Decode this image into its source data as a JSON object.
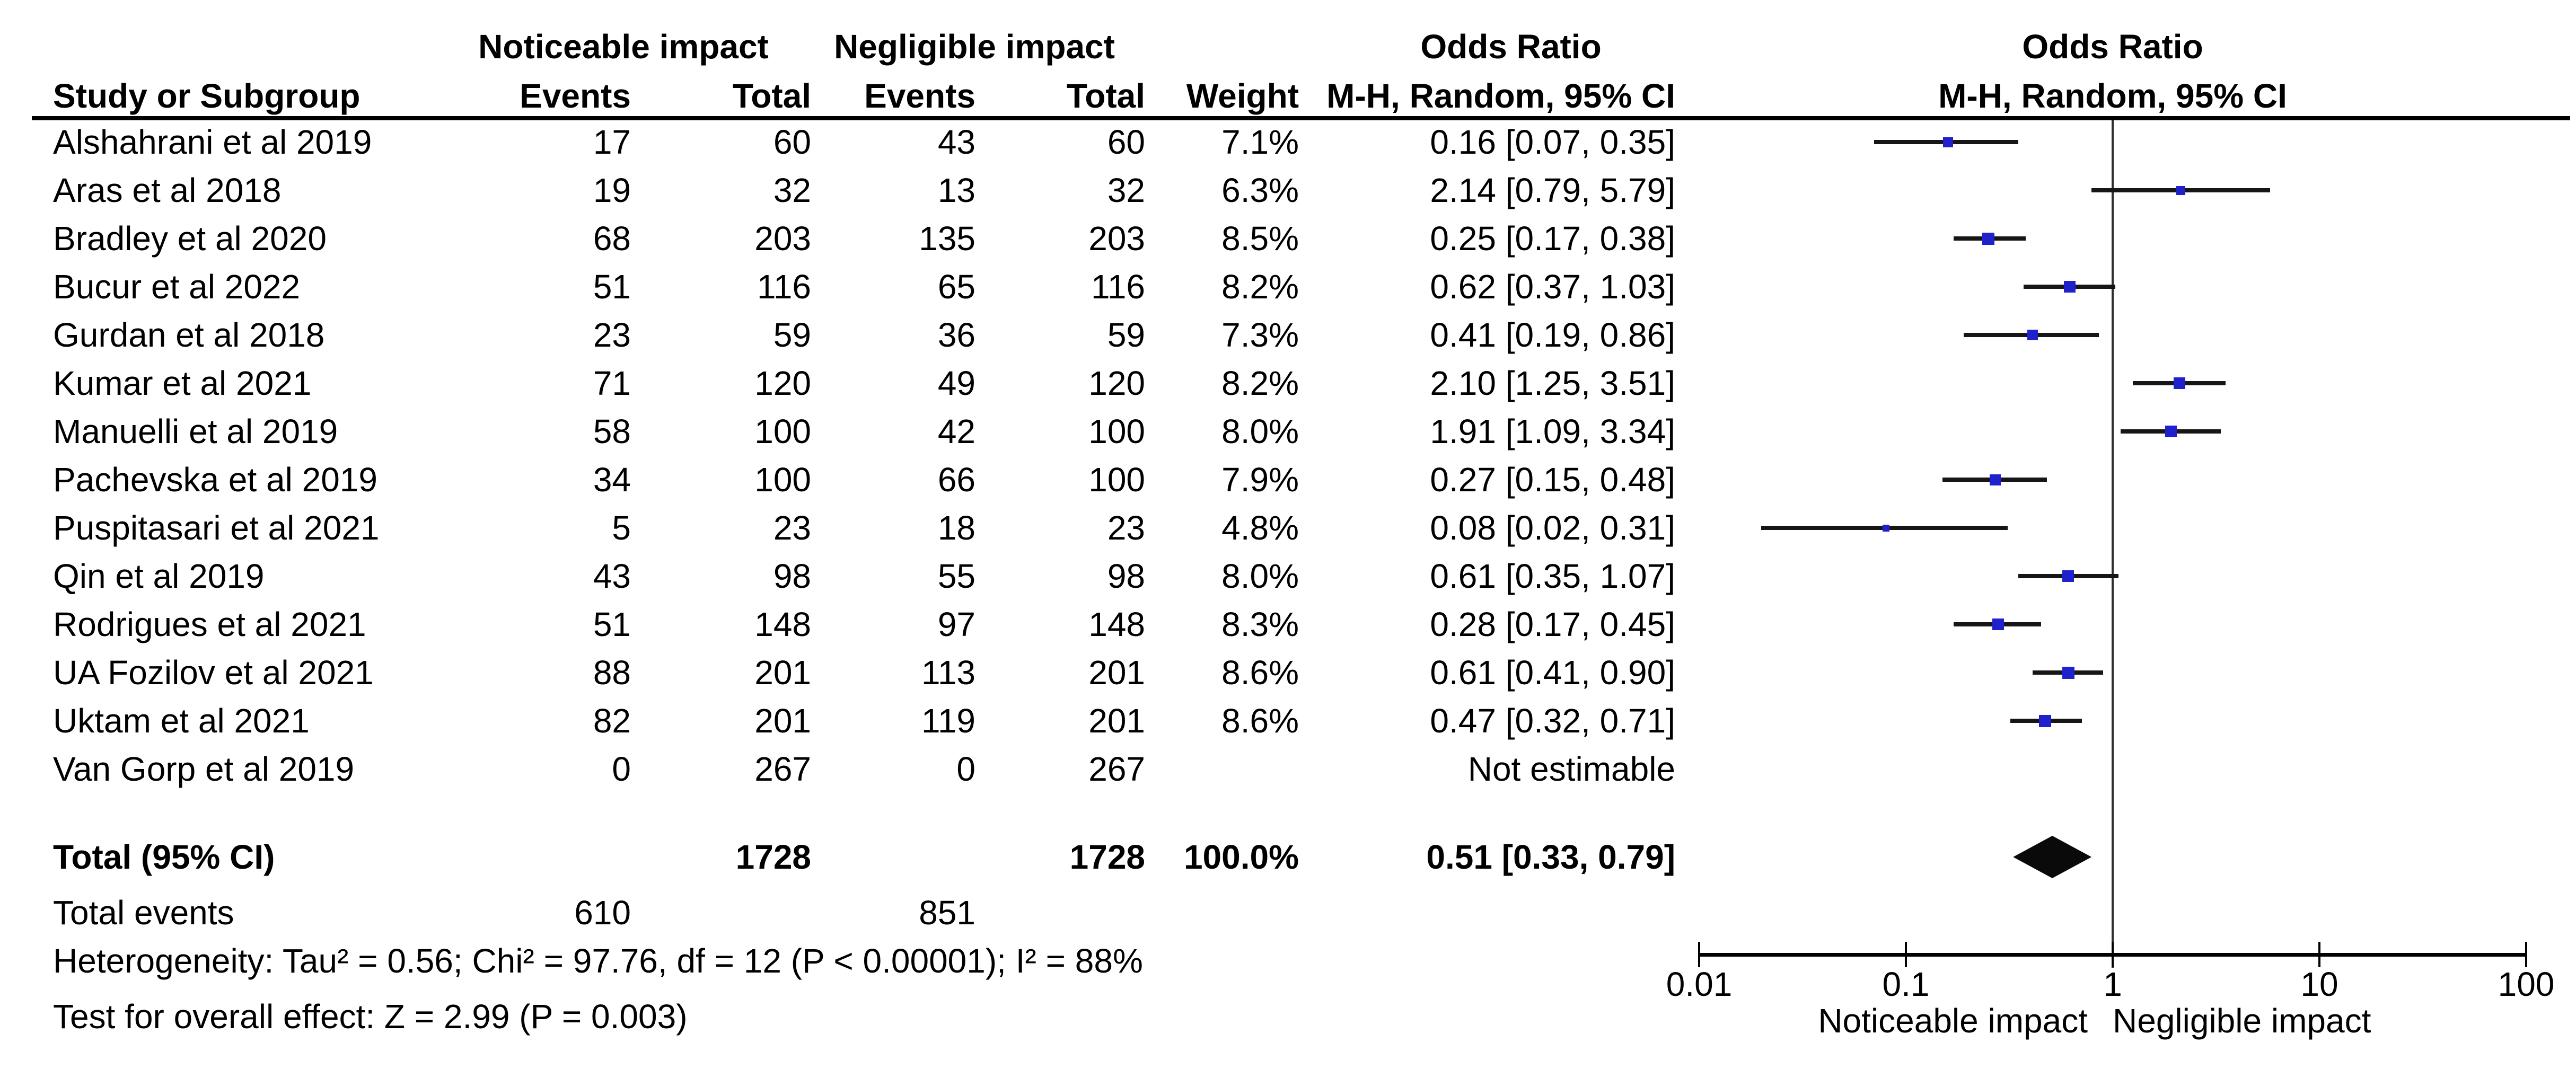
{
  "headers": {
    "group1": "Noticeable impact",
    "group2": "Negligible impact",
    "odds_ratio": "Odds Ratio",
    "method": "M-H, Random, 95% CI",
    "study": "Study or Subgroup",
    "events": "Events",
    "total": "Total",
    "weight": "Weight"
  },
  "chart_data": {
    "type": "forest",
    "effect_measure": "Odds Ratio",
    "model": "M-H, Random, 95% CI",
    "studies": [
      {
        "name": "Alshahrani et al 2019",
        "events1": "17",
        "total1": "60",
        "events2": "43",
        "total2": "60",
        "weight": "7.1%",
        "or_ci": "0.16 [0.07, 0.35]",
        "or": 0.16,
        "lo": 0.07,
        "hi": 0.35,
        "w": 7.1
      },
      {
        "name": "Aras et al 2018",
        "events1": "19",
        "total1": "32",
        "events2": "13",
        "total2": "32",
        "weight": "6.3%",
        "or_ci": "2.14 [0.79, 5.79]",
        "or": 2.14,
        "lo": 0.79,
        "hi": 5.79,
        "w": 6.3
      },
      {
        "name": "Bradley et al 2020",
        "events1": "68",
        "total1": "203",
        "events2": "135",
        "total2": "203",
        "weight": "8.5%",
        "or_ci": "0.25 [0.17, 0.38]",
        "or": 0.25,
        "lo": 0.17,
        "hi": 0.38,
        "w": 8.5
      },
      {
        "name": "Bucur et al 2022",
        "events1": "51",
        "total1": "116",
        "events2": "65",
        "total2": "116",
        "weight": "8.2%",
        "or_ci": "0.62 [0.37, 1.03]",
        "or": 0.62,
        "lo": 0.37,
        "hi": 1.03,
        "w": 8.2
      },
      {
        "name": "Gurdan et al 2018",
        "events1": "23",
        "total1": "59",
        "events2": "36",
        "total2": "59",
        "weight": "7.3%",
        "or_ci": "0.41 [0.19, 0.86]",
        "or": 0.41,
        "lo": 0.19,
        "hi": 0.86,
        "w": 7.3
      },
      {
        "name": "Kumar et al 2021",
        "events1": "71",
        "total1": "120",
        "events2": "49",
        "total2": "120",
        "weight": "8.2%",
        "or_ci": "2.10 [1.25, 3.51]",
        "or": 2.1,
        "lo": 1.25,
        "hi": 3.51,
        "w": 8.2
      },
      {
        "name": "Manuelli et al 2019",
        "events1": "58",
        "total1": "100",
        "events2": "42",
        "total2": "100",
        "weight": "8.0%",
        "or_ci": "1.91 [1.09, 3.34]",
        "or": 1.91,
        "lo": 1.09,
        "hi": 3.34,
        "w": 8.0
      },
      {
        "name": "Pachevska et al 2019",
        "events1": "34",
        "total1": "100",
        "events2": "66",
        "total2": "100",
        "weight": "7.9%",
        "or_ci": "0.27 [0.15, 0.48]",
        "or": 0.27,
        "lo": 0.15,
        "hi": 0.48,
        "w": 7.9
      },
      {
        "name": "Puspitasari et al 2021",
        "events1": "5",
        "total1": "23",
        "events2": "18",
        "total2": "23",
        "weight": "4.8%",
        "or_ci": "0.08 [0.02, 0.31]",
        "or": 0.08,
        "lo": 0.02,
        "hi": 0.31,
        "w": 4.8
      },
      {
        "name": "Qin et al 2019",
        "events1": "43",
        "total1": "98",
        "events2": "55",
        "total2": "98",
        "weight": "8.0%",
        "or_ci": "0.61 [0.35, 1.07]",
        "or": 0.61,
        "lo": 0.35,
        "hi": 1.07,
        "w": 8.0
      },
      {
        "name": "Rodrigues et al 2021",
        "events1": "51",
        "total1": "148",
        "events2": "97",
        "total2": "148",
        "weight": "8.3%",
        "or_ci": "0.28 [0.17, 0.45]",
        "or": 0.28,
        "lo": 0.17,
        "hi": 0.45,
        "w": 8.3
      },
      {
        "name": "UA Fozilov et al 2021",
        "events1": "88",
        "total1": "201",
        "events2": "113",
        "total2": "201",
        "weight": "8.6%",
        "or_ci": "0.61 [0.41, 0.90]",
        "or": 0.61,
        "lo": 0.41,
        "hi": 0.9,
        "w": 8.6
      },
      {
        "name": "Uktam et al 2021",
        "events1": "82",
        "total1": "201",
        "events2": "119",
        "total2": "201",
        "weight": "8.6%",
        "or_ci": "0.47 [0.32, 0.71]",
        "or": 0.47,
        "lo": 0.32,
        "hi": 0.71,
        "w": 8.6
      },
      {
        "name": "Van Gorp et al 2019",
        "events1": "0",
        "total1": "267",
        "events2": "0",
        "total2": "267",
        "weight": "",
        "or_ci": "Not estimable",
        "or": null,
        "lo": null,
        "hi": null,
        "w": 0
      }
    ],
    "total_row": {
      "label": "Total (95% CI)",
      "total1": "1728",
      "total2": "1728",
      "weight": "100.0%",
      "or_ci": "0.51 [0.33, 0.79]",
      "or": 0.51,
      "lo": 0.33,
      "hi": 0.79
    },
    "total_events": {
      "label": "Total events",
      "group1": "610",
      "group2": "851"
    },
    "heterogeneity": "Heterogeneity: Tau² = 0.56; Chi² = 97.76, df = 12 (P < 0.00001); I² = 88%",
    "overall_effect": "Test for overall effect: Z = 2.99 (P = 0.003)",
    "axis": {
      "scale": "log",
      "range": [
        0.01,
        100
      ],
      "ticks": [
        "0.01",
        "0.1",
        "1",
        "10",
        "100"
      ],
      "favors_left": "Noticeable impact",
      "favors_right": "Negligible impact"
    }
  },
  "colors": {
    "marker_blue": "#2020CD",
    "ci_line": "#161616",
    "diamond": "#0a0a0a",
    "rule": "#000000",
    "text": "#000000"
  }
}
